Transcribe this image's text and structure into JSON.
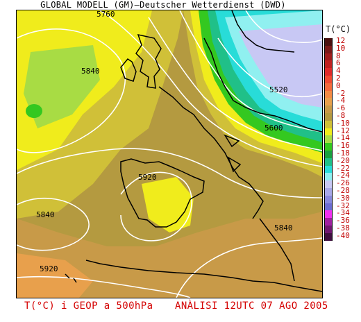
{
  "header": {
    "title": "GLOBAL MODELL (GM)—Deutscher Wetterdienst (DWD)"
  },
  "map": {
    "contour_labels": [
      "5760",
      "5840",
      "5520",
      "5600",
      "5920",
      "5840",
      "5840",
      "5920"
    ]
  },
  "legend": {
    "title": "T(°C)",
    "items": [
      {
        "label": "12",
        "color": "#4a1010"
      },
      {
        "label": "10",
        "color": "#7a1818"
      },
      {
        "label": "8",
        "color": "#a01c1c"
      },
      {
        "label": "6",
        "color": "#c02020"
      },
      {
        "label": "4",
        "color": "#e02a2a"
      },
      {
        "label": "2",
        "color": "#f04a32"
      },
      {
        "label": "0",
        "color": "#f46a3c"
      },
      {
        "label": "-2",
        "color": "#f48a44"
      },
      {
        "label": "-4",
        "color": "#e8a04c"
      },
      {
        "label": "-6",
        "color": "#c89a48"
      },
      {
        "label": "-8",
        "color": "#b49a40"
      },
      {
        "label": "-10",
        "color": "#d0c038"
      },
      {
        "label": "-12",
        "color": "#f0ec1c"
      },
      {
        "label": "-14",
        "color": "#a8dc44"
      },
      {
        "label": "-16",
        "color": "#34c820"
      },
      {
        "label": "-18",
        "color": "#1aa040"
      },
      {
        "label": "-20",
        "color": "#20c088"
      },
      {
        "label": "-22",
        "color": "#28dcd8"
      },
      {
        "label": "-24",
        "color": "#90f0f0"
      },
      {
        "label": "-26",
        "color": "#c8c8f4"
      },
      {
        "label": "-28",
        "color": "#a8a8e8"
      },
      {
        "label": "-30",
        "color": "#8888dc"
      },
      {
        "label": "-32",
        "color": "#6c6cd0"
      },
      {
        "label": "-34",
        "color": "#f030f0"
      },
      {
        "label": "-36",
        "color": "#a020a0"
      },
      {
        "label": "-38",
        "color": "#701870"
      },
      {
        "label": "-40",
        "color": "#401040"
      }
    ]
  },
  "footer": {
    "left": "T(°C) i GEOP a 500hPa",
    "right": "ANÀLISI 12UTC 07 AGO 2005"
  }
}
